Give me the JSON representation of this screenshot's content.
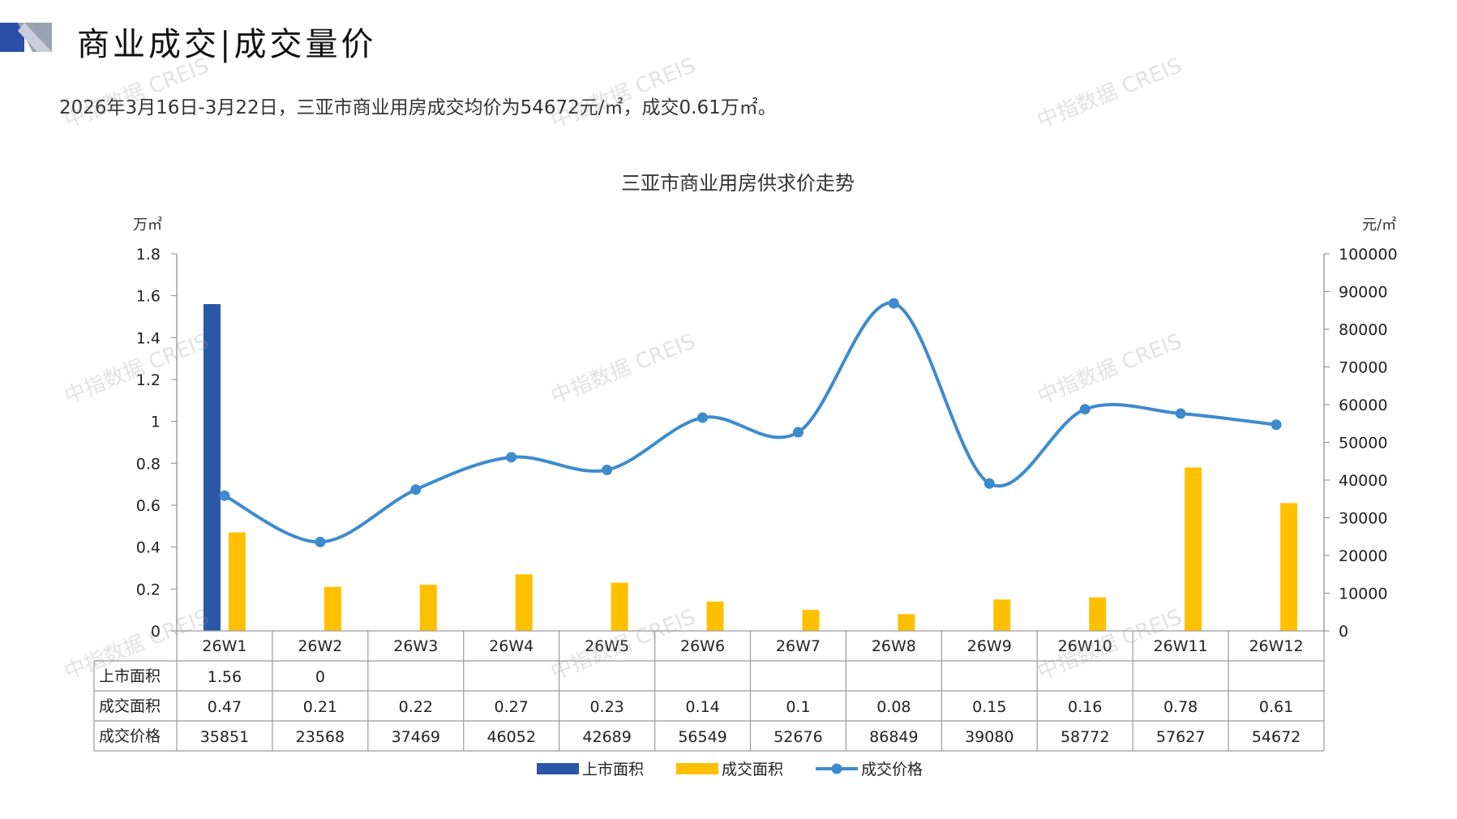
{
  "page": {
    "title": "商业成交|成交量价",
    "summary": "2026年3月16日-3月22日，三亚市商业用房成交均价为54672元/㎡，成交0.61万㎡。",
    "watermark": "中指数据 CREIS"
  },
  "chart_data": {
    "type": "bar",
    "title": "三亚市商业用房供求价走势",
    "categories": [
      "26W1",
      "26W2",
      "26W3",
      "26W4",
      "26W5",
      "26W6",
      "26W7",
      "26W8",
      "26W9",
      "26W10",
      "26W11",
      "26W12"
    ],
    "left_axis": {
      "unit": "万㎡",
      "ylim": [
        0,
        1.8
      ],
      "ticks": [
        "1.8",
        "1.6",
        "1.4",
        "1.2",
        "1",
        "0.8",
        "0.6",
        "0.4",
        "0.2",
        "0"
      ]
    },
    "right_axis": {
      "unit": "元/㎡",
      "ylim": [
        0,
        100000
      ],
      "ticks": [
        "100000",
        "90000",
        "80000",
        "70000",
        "60000",
        "50000",
        "40000",
        "30000",
        "20000",
        "10000",
        "0"
      ]
    },
    "series": [
      {
        "name": "上市面积",
        "type": "bar",
        "axis": "left",
        "color": "#2b57a7",
        "values": [
          1.56,
          0,
          null,
          null,
          null,
          null,
          null,
          null,
          null,
          null,
          null,
          null
        ],
        "table_values": [
          "1.56",
          "0",
          "",
          "",
          "",
          "",
          "",
          "",
          "",
          "",
          "",
          ""
        ]
      },
      {
        "name": "成交面积",
        "type": "bar",
        "axis": "left",
        "color": "#ffc000",
        "values": [
          0.47,
          0.21,
          0.22,
          0.27,
          0.23,
          0.14,
          0.1,
          0.08,
          0.15,
          0.16,
          0.78,
          0.61
        ],
        "table_values": [
          "0.47",
          "0.21",
          "0.22",
          "0.27",
          "0.23",
          "0.14",
          "0.1",
          "0.08",
          "0.15",
          "0.16",
          "0.78",
          "0.61"
        ]
      },
      {
        "name": "成交价格",
        "type": "line",
        "axis": "right",
        "color": "#3d8bcd",
        "values": [
          35851,
          23568,
          37469,
          46052,
          42689,
          56549,
          52676,
          86849,
          39080,
          58772,
          57627,
          54672
        ],
        "table_values": [
          "35851",
          "23568",
          "37469",
          "46052",
          "42689",
          "56549",
          "52676",
          "86849",
          "39080",
          "58772",
          "57627",
          "54672"
        ]
      }
    ],
    "legend": {
      "position": "bottom"
    },
    "grid": false
  }
}
